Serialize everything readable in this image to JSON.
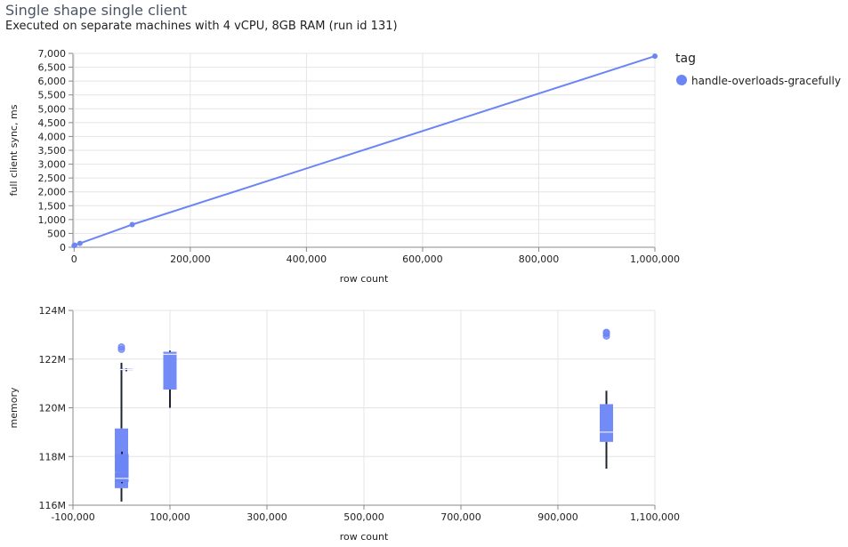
{
  "header": {
    "title": "Single shape single client",
    "subtitle": "Executed on separate machines with 4 vCPU, 8GB RAM (run id 131)"
  },
  "legend": {
    "title": "tag",
    "items": [
      {
        "label": "handle-overloads-gracefully",
        "color": "#6b85f5"
      }
    ]
  },
  "colors": {
    "series": "#6b85f5",
    "whisker": "#1f2430",
    "grid": "#e4e4e4"
  },
  "chart_data": [
    {
      "type": "line",
      "xlabel": "row count",
      "ylabel": "full client sync, ms",
      "xlim": [
        -2000,
        1000000
      ],
      "ylim": [
        0,
        7000
      ],
      "xticks": [
        0,
        200000,
        400000,
        600000,
        800000,
        1000000
      ],
      "xtick_labels": [
        "0",
        "200,000",
        "400,000",
        "600,000",
        "800,000",
        "1,000,000"
      ],
      "yticks": [
        0,
        500,
        1000,
        1500,
        2000,
        2500,
        3000,
        3500,
        4000,
        4500,
        5000,
        5500,
        6000,
        6500,
        7000
      ],
      "ytick_labels": [
        "0",
        "500",
        "1,000",
        "1,500",
        "2,000",
        "2,500",
        "3,000",
        "3,500",
        "4,000",
        "4,500",
        "5,000",
        "5,500",
        "6,000",
        "6,500",
        "7,000"
      ],
      "series": [
        {
          "name": "handle-overloads-gracefully",
          "x": [
            0,
            1000,
            10000,
            100000,
            1000000
          ],
          "y": [
            60,
            75,
            140,
            820,
            6900
          ]
        }
      ]
    },
    {
      "type": "box",
      "xlabel": "row count",
      "ylabel": "memory",
      "xlim": [
        -100000,
        1100000
      ],
      "ylim": [
        116,
        124
      ],
      "xticks": [
        -100000,
        100000,
        300000,
        500000,
        700000,
        900000,
        1100000
      ],
      "xtick_labels": [
        "-100,000",
        "100,000",
        "300,000",
        "500,000",
        "700,000",
        "900,000",
        "1,100,000"
      ],
      "yticks": [
        116,
        118,
        120,
        122,
        124
      ],
      "ytick_labels": [
        "116M",
        "118M",
        "120M",
        "122M",
        "124M"
      ],
      "boxes": [
        {
          "x": 0,
          "min": 116.15,
          "q1": 116.7,
          "median": 117.35,
          "q3": 119.15,
          "max": 121.85,
          "outliers": [
            122.4,
            122.5
          ]
        },
        {
          "x": 1000,
          "min": 116.9,
          "q1": 116.95,
          "median": 117.1,
          "q3": 118.1,
          "max": 118.2,
          "outliers": []
        },
        {
          "x": 10000,
          "min": 121.5,
          "q1": 121.55,
          "median": 121.57,
          "q3": 121.6,
          "max": 121.62,
          "outliers": []
        },
        {
          "x": 100000,
          "min": 120.0,
          "q1": 120.75,
          "median": 122.2,
          "q3": 122.3,
          "max": 122.35,
          "outliers": []
        },
        {
          "x": 1000000,
          "min": 117.5,
          "q1": 118.6,
          "median": 119.0,
          "q3": 120.15,
          "max": 120.7,
          "outliers": [
            122.95,
            123.05,
            123.1
          ]
        }
      ]
    }
  ]
}
